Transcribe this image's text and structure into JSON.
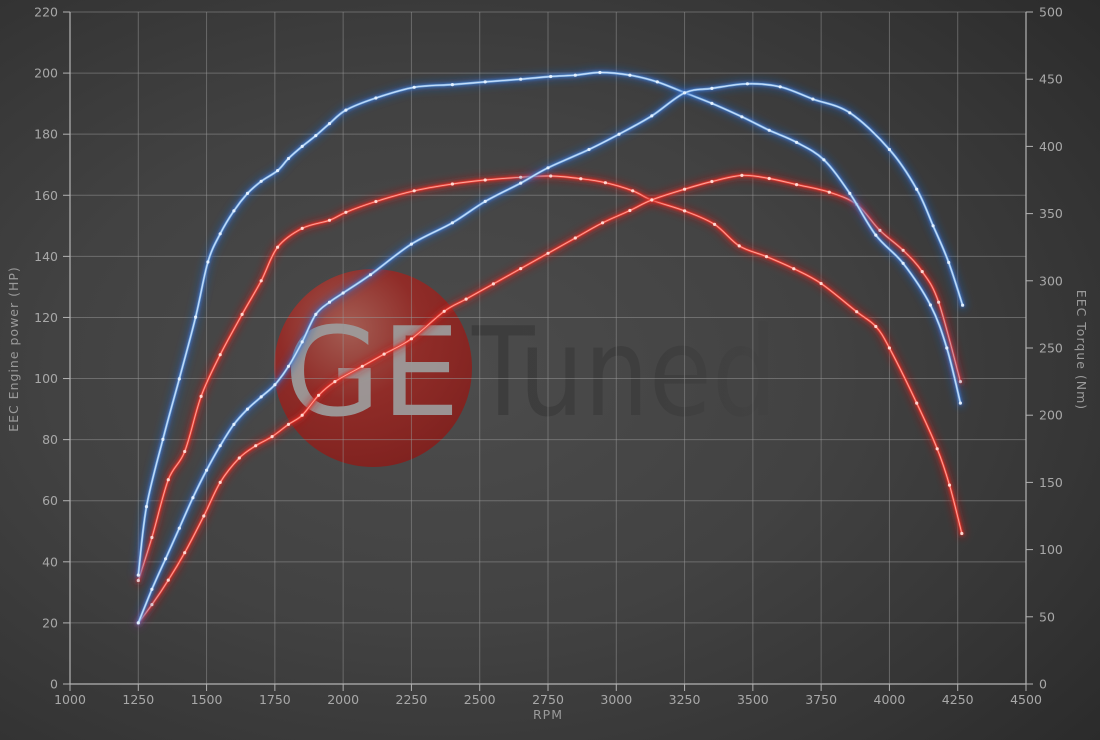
{
  "watermark": {
    "ge": "GE",
    "tuned": "Tuned",
    "circle_color_inner": "#b06055",
    "circle_color_mid": "#9c2722",
    "circle_color_outer": "#841b18",
    "ge_text_color": "#9d9d9d",
    "tuned_text_color": "#3c3c3c"
  },
  "axes": {
    "x": {
      "label": "RPM",
      "min": 1000,
      "max": 4500,
      "ticks": [
        1000,
        1250,
        1500,
        1750,
        2000,
        2250,
        2500,
        2750,
        3000,
        3250,
        3500,
        3750,
        4000,
        4250,
        4500
      ]
    },
    "y_left": {
      "label": "EEC Engine power (HP)",
      "min": 0,
      "max": 220,
      "ticks": [
        0,
        20,
        40,
        60,
        80,
        100,
        120,
        140,
        160,
        180,
        200,
        220
      ]
    },
    "y_right": {
      "label": "EEC Torque (Nm)",
      "min": 0,
      "max": 500,
      "ticks": [
        0,
        50,
        100,
        150,
        200,
        250,
        300,
        350,
        400,
        450,
        500
      ]
    }
  },
  "style": {
    "grid_color": "#979797",
    "axis_color": "#b3b3b3",
    "blue_glow": "#1f5fc4",
    "blue_mid": "#3e7ad6",
    "blue_core": "#85b5e8",
    "blue_inner": "#d9ebff",
    "blue_dot": "#e9f4ff",
    "red_glow": "#c01818",
    "red_mid": "#e32a22",
    "red_core": "#f0443a",
    "red_inner": "#ffb9ad",
    "red_dot": "#ffe2dc"
  },
  "chart_data": {
    "type": "line",
    "title": "",
    "xlabel": "RPM",
    "ylabel_left": "EEC Engine power (HP)",
    "ylabel_right": "EEC Torque (Nm)",
    "x_range": [
      1000,
      4500
    ],
    "y_left_range": [
      0,
      220
    ],
    "y_right_range": [
      0,
      500
    ],
    "grid": true,
    "legend": false,
    "series": [
      {
        "name": "torque_red",
        "axis": "right",
        "color_role": "red",
        "unit": "Nm",
        "peak": {
          "rpm": 2760,
          "value": 378
        },
        "points": [
          [
            1250,
            77
          ],
          [
            1300,
            109
          ],
          [
            1360,
            152
          ],
          [
            1420,
            173
          ],
          [
            1480,
            214
          ],
          [
            1550,
            245
          ],
          [
            1630,
            275
          ],
          [
            1700,
            300
          ],
          [
            1760,
            325
          ],
          [
            1850,
            339
          ],
          [
            1950,
            345
          ],
          [
            2010,
            351
          ],
          [
            2120,
            359
          ],
          [
            2260,
            367
          ],
          [
            2400,
            372
          ],
          [
            2520,
            375
          ],
          [
            2650,
            377
          ],
          [
            2760,
            378
          ],
          [
            2870,
            376
          ],
          [
            2960,
            373
          ],
          [
            3060,
            367
          ],
          [
            3130,
            360
          ],
          [
            3250,
            352
          ],
          [
            3360,
            342
          ],
          [
            3450,
            326
          ],
          [
            3550,
            318
          ],
          [
            3650,
            309
          ],
          [
            3750,
            298
          ],
          [
            3880,
            277
          ],
          [
            3950,
            266
          ],
          [
            4000,
            250
          ],
          [
            4100,
            209
          ],
          [
            4175,
            175
          ],
          [
            4220,
            148
          ],
          [
            4265,
            112
          ]
        ]
      },
      {
        "name": "power_red",
        "axis": "left",
        "color_role": "red",
        "unit": "HP",
        "peak": {
          "rpm": 3460,
          "value": 166.5
        },
        "points": [
          [
            1250,
            20
          ],
          [
            1300,
            26
          ],
          [
            1360,
            34
          ],
          [
            1420,
            43
          ],
          [
            1490,
            55
          ],
          [
            1550,
            66
          ],
          [
            1620,
            74
          ],
          [
            1680,
            78
          ],
          [
            1740,
            81
          ],
          [
            1800,
            85
          ],
          [
            1850,
            88
          ],
          [
            1910,
            94.5
          ],
          [
            1970,
            99
          ],
          [
            2070,
            104
          ],
          [
            2150,
            108
          ],
          [
            2250,
            113
          ],
          [
            2370,
            122
          ],
          [
            2450,
            126
          ],
          [
            2550,
            131
          ],
          [
            2650,
            136
          ],
          [
            2750,
            141
          ],
          [
            2850,
            146
          ],
          [
            2950,
            151
          ],
          [
            3050,
            155
          ],
          [
            3130,
            158.5
          ],
          [
            3250,
            162
          ],
          [
            3350,
            164.5
          ],
          [
            3460,
            166.5
          ],
          [
            3560,
            165.5
          ],
          [
            3660,
            163.5
          ],
          [
            3780,
            161
          ],
          [
            3880,
            157
          ],
          [
            3965,
            148.5
          ],
          [
            4050,
            142
          ],
          [
            4120,
            135
          ],
          [
            4180,
            125
          ],
          [
            4260,
            99
          ]
        ]
      },
      {
        "name": "torque_blue",
        "axis": "right",
        "color_role": "blue",
        "unit": "Nm",
        "peak": {
          "rpm": 2940,
          "value": 455
        },
        "points": [
          [
            1250,
            81
          ],
          [
            1280,
            132
          ],
          [
            1340,
            182
          ],
          [
            1400,
            227
          ],
          [
            1460,
            273
          ],
          [
            1505,
            314
          ],
          [
            1550,
            335
          ],
          [
            1600,
            352
          ],
          [
            1650,
            365
          ],
          [
            1700,
            374
          ],
          [
            1760,
            382
          ],
          [
            1800,
            391
          ],
          [
            1850,
            400
          ],
          [
            1900,
            408
          ],
          [
            1950,
            417
          ],
          [
            2010,
            427
          ],
          [
            2120,
            436
          ],
          [
            2260,
            444
          ],
          [
            2400,
            446
          ],
          [
            2520,
            448
          ],
          [
            2650,
            450
          ],
          [
            2760,
            452
          ],
          [
            2850,
            453
          ],
          [
            2940,
            455
          ],
          [
            3050,
            453
          ],
          [
            3150,
            448
          ],
          [
            3250,
            440
          ],
          [
            3350,
            432
          ],
          [
            3460,
            422
          ],
          [
            3560,
            412
          ],
          [
            3660,
            403
          ],
          [
            3760,
            390
          ],
          [
            3855,
            365
          ],
          [
            3950,
            334
          ],
          [
            4050,
            313
          ],
          [
            4150,
            282
          ],
          [
            4210,
            250
          ],
          [
            4260,
            209
          ]
        ]
      },
      {
        "name": "power_blue",
        "axis": "left",
        "color_role": "blue",
        "unit": "HP",
        "peak": {
          "rpm": 3480,
          "value": 196.5
        },
        "points": [
          [
            1250,
            20
          ],
          [
            1300,
            31
          ],
          [
            1350,
            41
          ],
          [
            1400,
            51
          ],
          [
            1450,
            61
          ],
          [
            1500,
            70
          ],
          [
            1550,
            78
          ],
          [
            1600,
            85
          ],
          [
            1650,
            90
          ],
          [
            1700,
            94
          ],
          [
            1750,
            98
          ],
          [
            1800,
            104
          ],
          [
            1850,
            112
          ],
          [
            1900,
            121
          ],
          [
            1950,
            125
          ],
          [
            2000,
            128
          ],
          [
            2100,
            134
          ],
          [
            2250,
            144
          ],
          [
            2400,
            151
          ],
          [
            2520,
            158
          ],
          [
            2650,
            164
          ],
          [
            2750,
            169
          ],
          [
            2900,
            175
          ],
          [
            3010,
            180
          ],
          [
            3130,
            186
          ],
          [
            3250,
            193.5
          ],
          [
            3350,
            195
          ],
          [
            3480,
            196.5
          ],
          [
            3600,
            195.5
          ],
          [
            3720,
            191.5
          ],
          [
            3855,
            187
          ],
          [
            4000,
            175
          ],
          [
            4100,
            162
          ],
          [
            4160,
            150
          ],
          [
            4217,
            138
          ],
          [
            4268,
            124
          ]
        ]
      }
    ]
  }
}
